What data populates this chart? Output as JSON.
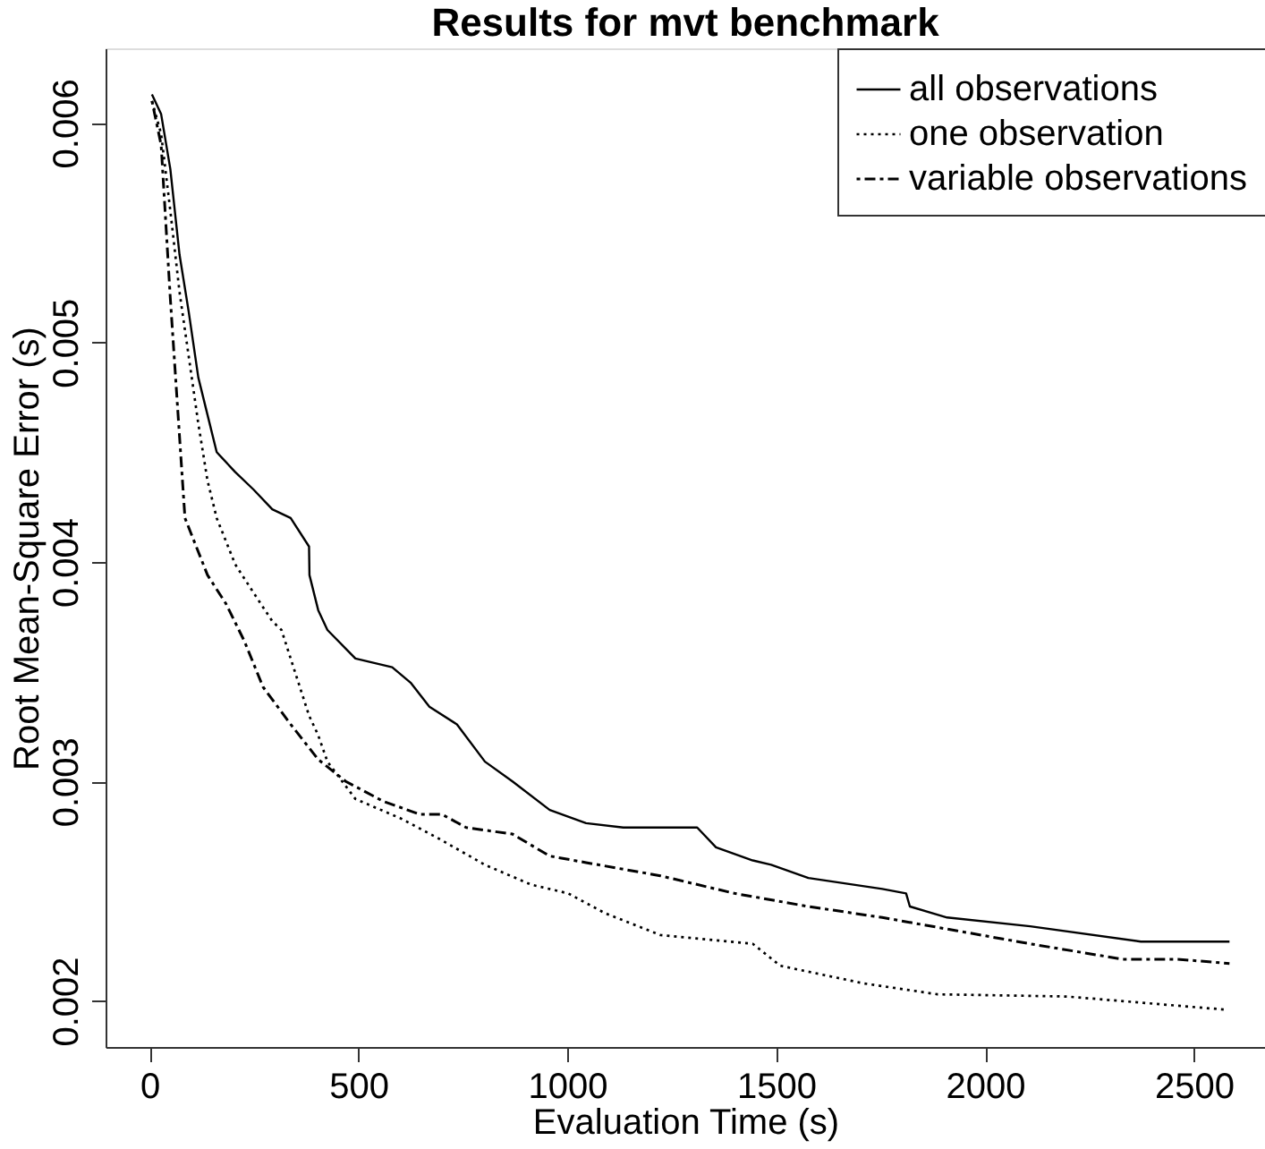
{
  "chart_data": {
    "type": "line",
    "title": "Results for mvt benchmark",
    "xlabel": "Evaluation Time (s)",
    "ylabel": "Root Mean-Square Error (s)",
    "xlim": [
      -105,
      2670
    ],
    "ylim": [
      0.00179,
      0.00634
    ],
    "xticks": [
      0,
      500,
      1000,
      1500,
      2000,
      2500
    ],
    "yticks": [
      0.002,
      0.003,
      0.004,
      0.005,
      0.006
    ],
    "grid": false,
    "legend": "top right",
    "marker": "none",
    "series": [
      {
        "name": "all observations",
        "color": "#000000",
        "line_style": "solid",
        "x": [
          6,
          28,
          50,
          72,
          94,
          117,
          139,
          161,
          205,
          249,
          294,
          338,
          382,
          383,
          404,
          426,
          493,
          581,
          625,
          670,
          736,
          803,
          869,
          958,
          1045,
          1134,
          1311,
          1356,
          1444,
          1488,
          1577,
          1754,
          1811,
          1820,
          1909,
          2108,
          2373,
          2585
        ],
        "values": [
          0.00613,
          0.00604,
          0.00579,
          0.0054,
          0.00514,
          0.00484,
          0.00467,
          0.0045,
          0.00441,
          0.00433,
          0.00424,
          0.0042,
          0.00407,
          0.00394,
          0.00378,
          0.00369,
          0.00356,
          0.00352,
          0.00345,
          0.00334,
          0.00326,
          0.00309,
          0.003,
          0.00287,
          0.00281,
          0.00279,
          0.00279,
          0.0027,
          0.00264,
          0.00262,
          0.00256,
          0.00251,
          0.00249,
          0.00243,
          0.00238,
          0.00234,
          0.00227,
          0.00227
        ]
      },
      {
        "name": "one observation",
        "color": "#000000",
        "line_style": "dotted",
        "x": [
          6,
          28,
          50,
          72,
          117,
          139,
          161,
          205,
          249,
          294,
          316,
          338,
          382,
          404,
          426,
          493,
          603,
          692,
          803,
          913,
          1002,
          1090,
          1223,
          1444,
          1510,
          1709,
          1886,
          2196,
          2576
        ],
        "values": [
          0.0061,
          0.00595,
          0.0056,
          0.00523,
          0.00463,
          0.00437,
          0.0042,
          0.00399,
          0.00386,
          0.00373,
          0.00369,
          0.00356,
          0.0033,
          0.00321,
          0.00309,
          0.00292,
          0.00283,
          0.00274,
          0.00262,
          0.00253,
          0.00249,
          0.0024,
          0.0023,
          0.00226,
          0.00216,
          0.00208,
          0.00203,
          0.00202,
          0.00196
        ]
      },
      {
        "name": "variable observations",
        "color": "#000000",
        "line_style": "dashdot",
        "x": [
          6,
          28,
          50,
          85,
          139,
          183,
          227,
          272,
          338,
          404,
          470,
          559,
          647,
          700,
          758,
          869,
          958,
          1045,
          1223,
          1400,
          1577,
          1754,
          1931,
          2108,
          2329,
          2461,
          2585
        ],
        "values": [
          0.0061,
          0.0059,
          0.0052,
          0.0042,
          0.00394,
          0.00381,
          0.00364,
          0.00343,
          0.00326,
          0.0031,
          0.003,
          0.00291,
          0.00285,
          0.00285,
          0.00279,
          0.00276,
          0.00266,
          0.00263,
          0.00257,
          0.00249,
          0.00243,
          0.00238,
          0.00232,
          0.00226,
          0.00219,
          0.00219,
          0.00217
        ]
      }
    ]
  }
}
